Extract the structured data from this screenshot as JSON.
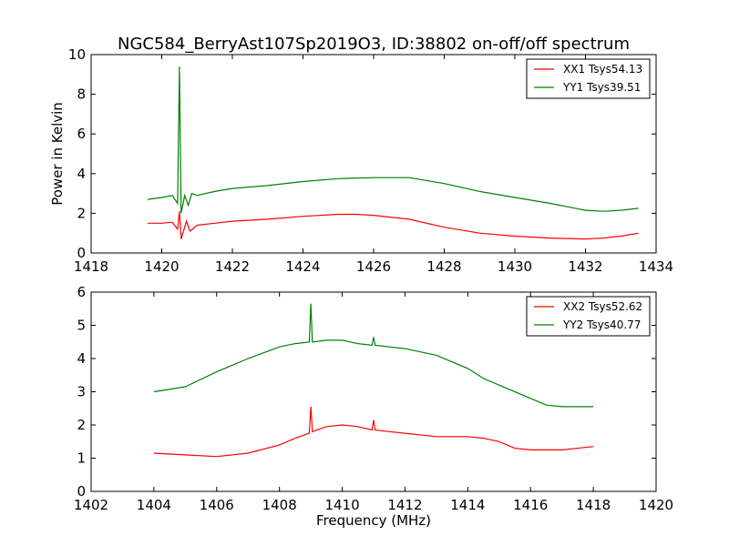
{
  "title": "NGC584_BerryAst107Sp2019O3, ID:38802 on-off/off spectrum",
  "colors": {
    "series1": "#ff0000",
    "series2": "#008000",
    "axes": "#000000"
  },
  "chart_data": [
    {
      "type": "line",
      "xlabel": "",
      "ylabel": "Power in Kelvin",
      "xlim": [
        1418,
        1434
      ],
      "ylim": [
        0,
        10
      ],
      "xticks": [
        "1418",
        "1420",
        "1422",
        "1424",
        "1426",
        "1428",
        "1430",
        "1432",
        "1434"
      ],
      "yticks": [
        "0",
        "2",
        "4",
        "6",
        "8",
        "10"
      ],
      "legend_position": "top-right",
      "series": [
        {
          "name": "XX1 Tsys54.13",
          "color": "#ff0000",
          "x": [
            1419.6,
            1420.0,
            1420.3,
            1420.45,
            1420.5,
            1420.55,
            1420.7,
            1420.8,
            1421.0,
            1421.5,
            1422.0,
            1423.0,
            1424.0,
            1425.0,
            1425.5,
            1426.0,
            1427.0,
            1428.0,
            1429.0,
            1430.0,
            1431.0,
            1432.0,
            1432.5,
            1433.0,
            1433.5
          ],
          "y": [
            1.5,
            1.5,
            1.55,
            1.2,
            2.1,
            0.7,
            1.6,
            1.1,
            1.4,
            1.5,
            1.6,
            1.7,
            1.85,
            1.95,
            1.95,
            1.9,
            1.7,
            1.3,
            1.0,
            0.85,
            0.75,
            0.7,
            0.75,
            0.85,
            1.0
          ]
        },
        {
          "name": "YY1 Tsys39.51",
          "color": "#008000",
          "x": [
            1419.6,
            1420.0,
            1420.3,
            1420.45,
            1420.5,
            1420.55,
            1420.65,
            1420.75,
            1420.85,
            1421.0,
            1421.5,
            1422.0,
            1423.0,
            1424.0,
            1425.0,
            1426.0,
            1427.0,
            1428.0,
            1429.0,
            1430.0,
            1431.0,
            1432.0,
            1432.5,
            1433.0,
            1433.5
          ],
          "y": [
            2.7,
            2.8,
            2.9,
            2.5,
            9.4,
            2.0,
            2.9,
            2.4,
            3.0,
            2.9,
            3.1,
            3.25,
            3.4,
            3.6,
            3.75,
            3.8,
            3.8,
            3.5,
            3.1,
            2.8,
            2.5,
            2.15,
            2.1,
            2.15,
            2.25
          ]
        }
      ]
    },
    {
      "type": "line",
      "xlabel": "Frequency (MHz)",
      "ylabel": "",
      "xlim": [
        1402,
        1420
      ],
      "ylim": [
        0,
        6
      ],
      "xticks": [
        "1402",
        "1404",
        "1406",
        "1408",
        "1410",
        "1412",
        "1414",
        "1416",
        "1418",
        "1420"
      ],
      "yticks": [
        "0",
        "1",
        "2",
        "3",
        "4",
        "5",
        "6"
      ],
      "legend_position": "top-right",
      "series": [
        {
          "name": "XX2 Tsys52.62",
          "color": "#ff0000",
          "x": [
            1404.0,
            1405.0,
            1406.0,
            1407.0,
            1408.0,
            1408.5,
            1408.95,
            1409.0,
            1409.05,
            1409.5,
            1410.0,
            1410.5,
            1410.95,
            1411.0,
            1411.05,
            1411.5,
            1412.0,
            1413.0,
            1414.0,
            1414.5,
            1415.0,
            1415.5,
            1416.0,
            1417.0,
            1418.0
          ],
          "y": [
            1.15,
            1.1,
            1.05,
            1.15,
            1.4,
            1.6,
            1.75,
            2.55,
            1.8,
            1.95,
            2.0,
            1.95,
            1.85,
            2.15,
            1.85,
            1.8,
            1.75,
            1.65,
            1.65,
            1.6,
            1.5,
            1.3,
            1.25,
            1.25,
            1.35
          ]
        },
        {
          "name": "YY2 Tsys40.77",
          "color": "#008000",
          "x": [
            1404.0,
            1405.0,
            1406.0,
            1407.0,
            1408.0,
            1408.5,
            1408.95,
            1409.0,
            1409.05,
            1409.5,
            1410.0,
            1410.5,
            1410.95,
            1411.0,
            1411.05,
            1411.5,
            1412.0,
            1413.0,
            1414.0,
            1414.5,
            1415.0,
            1416.0,
            1416.5,
            1417.0,
            1418.0
          ],
          "y": [
            3.0,
            3.15,
            3.6,
            4.0,
            4.35,
            4.45,
            4.5,
            5.65,
            4.5,
            4.55,
            4.55,
            4.45,
            4.4,
            4.65,
            4.4,
            4.35,
            4.3,
            4.1,
            3.7,
            3.4,
            3.2,
            2.8,
            2.6,
            2.55,
            2.55
          ]
        }
      ]
    }
  ]
}
